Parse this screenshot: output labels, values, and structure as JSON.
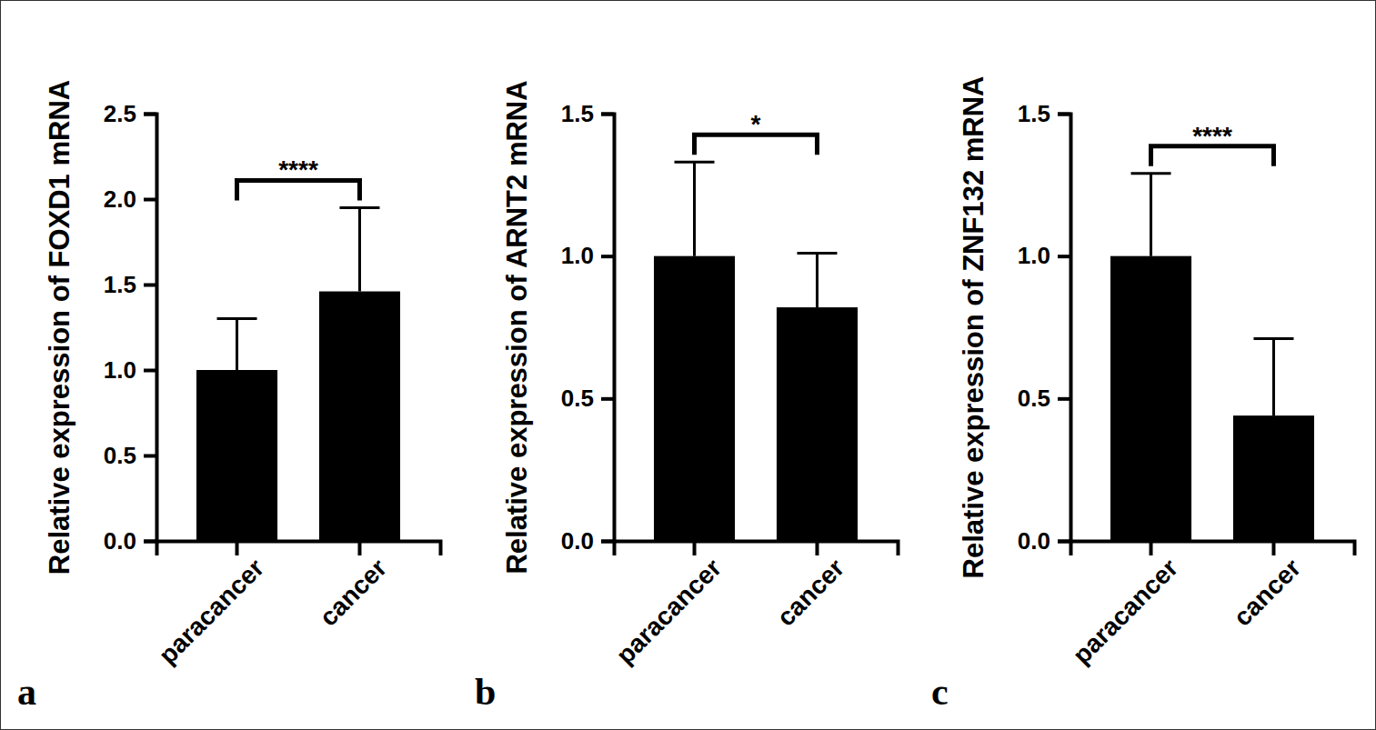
{
  "chart_data": [
    {
      "type": "bar",
      "panel_label": "a",
      "ylabel": "Relative expression of FOXD1 mRNA",
      "categories": [
        "paracancer",
        "cancer"
      ],
      "values": [
        1.0,
        1.46
      ],
      "errors": [
        0.3,
        0.49
      ],
      "color": "#000000",
      "annotation": "****",
      "ylim": [
        0,
        2.5
      ],
      "yticks": [
        {
          "value": 0,
          "label": "0.0"
        },
        {
          "value": 0.5,
          "label": "0.5"
        },
        {
          "value": 1,
          "label": "1.0"
        },
        {
          "value": 1.5,
          "label": "1.5"
        },
        {
          "value": 2,
          "label": "2.0"
        },
        {
          "value": 2.5,
          "label": "2.5"
        }
      ]
    },
    {
      "type": "bar",
      "panel_label": "b",
      "ylabel": "Relative expression of ARNT2 mRNA",
      "categories": [
        "paracancer",
        "cancer"
      ],
      "values": [
        1.0,
        0.82
      ],
      "errors": [
        0.33,
        0.19
      ],
      "color": "#000000",
      "annotation": "*",
      "ylim": [
        0,
        1.5
      ],
      "yticks": [
        {
          "value": 0,
          "label": "0.0"
        },
        {
          "value": 0.5,
          "label": "0.5"
        },
        {
          "value": 1,
          "label": "1.0"
        },
        {
          "value": 1.5,
          "label": "1.5"
        }
      ]
    },
    {
      "type": "bar",
      "panel_label": "c",
      "ylabel": "Relative expression of ZNF132 mRNA",
      "categories": [
        "paracancer",
        "cancer"
      ],
      "values": [
        1.0,
        0.44
      ],
      "errors": [
        0.29,
        0.27
      ],
      "color": "#000000",
      "annotation": "****",
      "ylim": [
        0,
        1.5
      ],
      "yticks": [
        {
          "value": 0,
          "label": "0.0"
        },
        {
          "value": 0.5,
          "label": "0.5"
        },
        {
          "value": 1,
          "label": "1.0"
        },
        {
          "value": 1.5,
          "label": "1.5"
        }
      ]
    }
  ]
}
